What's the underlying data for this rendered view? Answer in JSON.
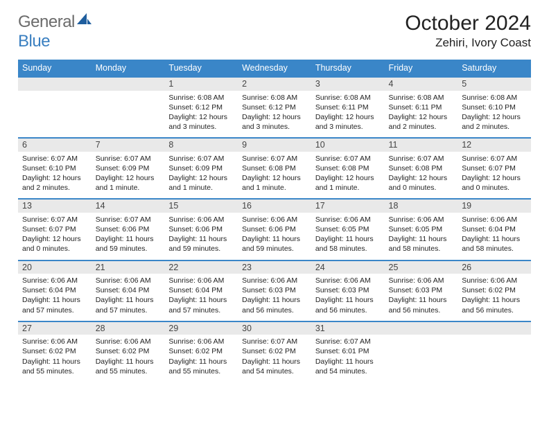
{
  "logo": {
    "line1": "General",
    "line2": "Blue"
  },
  "title": "October 2024",
  "location": "Zehiri, Ivory Coast",
  "colors": {
    "header_bg": "#3a86c8",
    "header_text": "#ffffff",
    "daynum_bg": "#e9e9e9",
    "rule": "#3a86c8",
    "logo_gray": "#6b6b6b",
    "logo_blue": "#3a7fc0"
  },
  "dayHeaders": [
    "Sunday",
    "Monday",
    "Tuesday",
    "Wednesday",
    "Thursday",
    "Friday",
    "Saturday"
  ],
  "weeks": [
    [
      null,
      null,
      {
        "n": "1",
        "sunrise": "6:08 AM",
        "sunset": "6:12 PM",
        "daylight": "12 hours and 3 minutes."
      },
      {
        "n": "2",
        "sunrise": "6:08 AM",
        "sunset": "6:12 PM",
        "daylight": "12 hours and 3 minutes."
      },
      {
        "n": "3",
        "sunrise": "6:08 AM",
        "sunset": "6:11 PM",
        "daylight": "12 hours and 3 minutes."
      },
      {
        "n": "4",
        "sunrise": "6:08 AM",
        "sunset": "6:11 PM",
        "daylight": "12 hours and 2 minutes."
      },
      {
        "n": "5",
        "sunrise": "6:08 AM",
        "sunset": "6:10 PM",
        "daylight": "12 hours and 2 minutes."
      }
    ],
    [
      {
        "n": "6",
        "sunrise": "6:07 AM",
        "sunset": "6:10 PM",
        "daylight": "12 hours and 2 minutes."
      },
      {
        "n": "7",
        "sunrise": "6:07 AM",
        "sunset": "6:09 PM",
        "daylight": "12 hours and 1 minute."
      },
      {
        "n": "8",
        "sunrise": "6:07 AM",
        "sunset": "6:09 PM",
        "daylight": "12 hours and 1 minute."
      },
      {
        "n": "9",
        "sunrise": "6:07 AM",
        "sunset": "6:08 PM",
        "daylight": "12 hours and 1 minute."
      },
      {
        "n": "10",
        "sunrise": "6:07 AM",
        "sunset": "6:08 PM",
        "daylight": "12 hours and 1 minute."
      },
      {
        "n": "11",
        "sunrise": "6:07 AM",
        "sunset": "6:08 PM",
        "daylight": "12 hours and 0 minutes."
      },
      {
        "n": "12",
        "sunrise": "6:07 AM",
        "sunset": "6:07 PM",
        "daylight": "12 hours and 0 minutes."
      }
    ],
    [
      {
        "n": "13",
        "sunrise": "6:07 AM",
        "sunset": "6:07 PM",
        "daylight": "12 hours and 0 minutes."
      },
      {
        "n": "14",
        "sunrise": "6:07 AM",
        "sunset": "6:06 PM",
        "daylight": "11 hours and 59 minutes."
      },
      {
        "n": "15",
        "sunrise": "6:06 AM",
        "sunset": "6:06 PM",
        "daylight": "11 hours and 59 minutes."
      },
      {
        "n": "16",
        "sunrise": "6:06 AM",
        "sunset": "6:06 PM",
        "daylight": "11 hours and 59 minutes."
      },
      {
        "n": "17",
        "sunrise": "6:06 AM",
        "sunset": "6:05 PM",
        "daylight": "11 hours and 58 minutes."
      },
      {
        "n": "18",
        "sunrise": "6:06 AM",
        "sunset": "6:05 PM",
        "daylight": "11 hours and 58 minutes."
      },
      {
        "n": "19",
        "sunrise": "6:06 AM",
        "sunset": "6:04 PM",
        "daylight": "11 hours and 58 minutes."
      }
    ],
    [
      {
        "n": "20",
        "sunrise": "6:06 AM",
        "sunset": "6:04 PM",
        "daylight": "11 hours and 57 minutes."
      },
      {
        "n": "21",
        "sunrise": "6:06 AM",
        "sunset": "6:04 PM",
        "daylight": "11 hours and 57 minutes."
      },
      {
        "n": "22",
        "sunrise": "6:06 AM",
        "sunset": "6:04 PM",
        "daylight": "11 hours and 57 minutes."
      },
      {
        "n": "23",
        "sunrise": "6:06 AM",
        "sunset": "6:03 PM",
        "daylight": "11 hours and 56 minutes."
      },
      {
        "n": "24",
        "sunrise": "6:06 AM",
        "sunset": "6:03 PM",
        "daylight": "11 hours and 56 minutes."
      },
      {
        "n": "25",
        "sunrise": "6:06 AM",
        "sunset": "6:03 PM",
        "daylight": "11 hours and 56 minutes."
      },
      {
        "n": "26",
        "sunrise": "6:06 AM",
        "sunset": "6:02 PM",
        "daylight": "11 hours and 56 minutes."
      }
    ],
    [
      {
        "n": "27",
        "sunrise": "6:06 AM",
        "sunset": "6:02 PM",
        "daylight": "11 hours and 55 minutes."
      },
      {
        "n": "28",
        "sunrise": "6:06 AM",
        "sunset": "6:02 PM",
        "daylight": "11 hours and 55 minutes."
      },
      {
        "n": "29",
        "sunrise": "6:06 AM",
        "sunset": "6:02 PM",
        "daylight": "11 hours and 55 minutes."
      },
      {
        "n": "30",
        "sunrise": "6:07 AM",
        "sunset": "6:02 PM",
        "daylight": "11 hours and 54 minutes."
      },
      {
        "n": "31",
        "sunrise": "6:07 AM",
        "sunset": "6:01 PM",
        "daylight": "11 hours and 54 minutes."
      },
      null,
      null
    ]
  ]
}
